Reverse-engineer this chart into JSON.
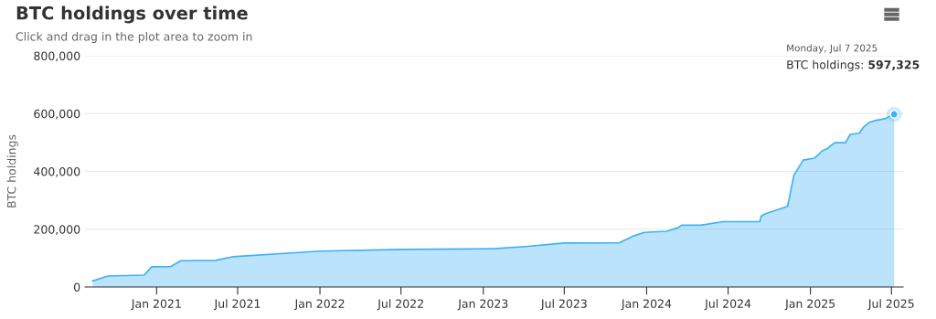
{
  "chart_data": {
    "type": "area",
    "title": "BTC holdings over time",
    "subtitle": "Click and drag in the plot area to zoom in",
    "ylabel": "BTC holdings",
    "x": [
      "2020-08-11",
      "2020-09-14",
      "2020-12-04",
      "2020-12-21",
      "2021-02-02",
      "2021-02-24",
      "2021-05-13",
      "2021-06-21",
      "2021-12-30",
      "2022-07-01",
      "2022-12-20",
      "2023-01-30",
      "2023-04-05",
      "2023-07-01",
      "2023-11-01",
      "2023-11-30",
      "2023-12-27",
      "2024-02-15",
      "2024-03-11",
      "2024-03-19",
      "2024-05-01",
      "2024-06-20",
      "2024-09-10",
      "2024-09-13",
      "2024-09-20",
      "2024-11-11",
      "2024-11-25",
      "2024-12-16",
      "2025-01-10",
      "2025-01-21",
      "2025-01-27",
      "2025-02-08",
      "2025-02-24",
      "2025-03-20",
      "2025-03-31",
      "2025-04-20",
      "2025-04-30",
      "2025-05-12",
      "2025-05-26",
      "2025-06-16",
      "2025-07-07"
    ],
    "series": [
      {
        "name": "BTC holdings:",
        "color": "#3db1f7",
        "values": [
          21000,
          38000,
          41000,
          70000,
          71000,
          91000,
          92000,
          105000,
          124000,
          130000,
          132000,
          133000,
          140000,
          152000,
          153000,
          175000,
          189000,
          193000,
          205000,
          214000,
          214000,
          226000,
          226000,
          245000,
          252000,
          279000,
          387000,
          439000,
          446000,
          461000,
          471000,
          479000,
          499000,
          499000,
          528000,
          532000,
          554000,
          569000,
          576000,
          582000,
          597325
        ],
        "value_labels": [
          null,
          null,
          null,
          null,
          null,
          null,
          null,
          null,
          null,
          null,
          null,
          null,
          null,
          null,
          null,
          null,
          null,
          null,
          null,
          null,
          null,
          null,
          null,
          null,
          null,
          null,
          null,
          null,
          null,
          null,
          null,
          null,
          null,
          null,
          null,
          null,
          null,
          null,
          null,
          null,
          "597,325"
        ]
      }
    ],
    "xlim": [
      "2020-07-25",
      "2025-07-27"
    ],
    "ylim": [
      0,
      800000
    ],
    "xticks": [
      {
        "value": "2021-01-01",
        "label": "Jan 2021"
      },
      {
        "value": "2021-07-01",
        "label": "Jul 2021"
      },
      {
        "value": "2022-01-01",
        "label": "Jan 2022"
      },
      {
        "value": "2022-07-01",
        "label": "Jul 2022"
      },
      {
        "value": "2023-01-01",
        "label": "Jan 2023"
      },
      {
        "value": "2023-07-01",
        "label": "Jul 2023"
      },
      {
        "value": "2024-01-01",
        "label": "Jan 2024"
      },
      {
        "value": "2024-07-01",
        "label": "Jul 2024"
      },
      {
        "value": "2025-01-01",
        "label": "Jan 2025"
      },
      {
        "value": "2025-07-01",
        "label": "Jul 2025"
      }
    ],
    "yticks": [
      {
        "value": 0,
        "label": "0"
      },
      {
        "value": 200000,
        "label": "200,000"
      },
      {
        "value": 400000,
        "label": "400,000"
      },
      {
        "value": 600000,
        "label": "600,000"
      },
      {
        "value": 800000,
        "label": "800,000"
      }
    ],
    "grid": "y",
    "annotations": [
      "Monday, Jul 7 2025"
    ]
  }
}
